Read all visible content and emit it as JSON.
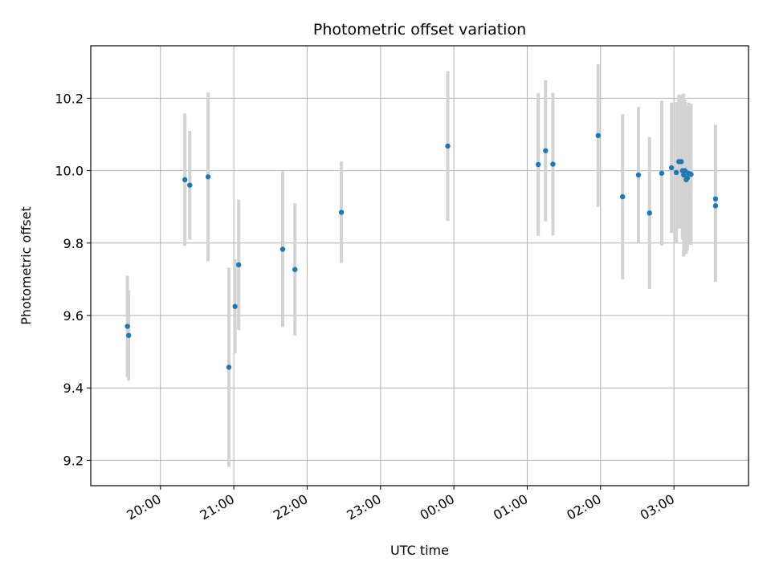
{
  "chart_data": {
    "type": "scatter",
    "title": "Photometric offset variation",
    "xlabel": "UTC time",
    "ylabel": "Photometric offset",
    "x_tick_labels": [
      "20:00",
      "21:00",
      "22:00",
      "23:00",
      "00:00",
      "01:00",
      "02:00",
      "03:00"
    ],
    "y_tick_labels": [
      "9.2",
      "9.4",
      "9.6",
      "9.8",
      "10.0",
      "10.2"
    ],
    "y_ticks": [
      9.2,
      9.4,
      9.6,
      9.8,
      10.0,
      10.2
    ],
    "xlim": [
      "19:03",
      "04:01"
    ],
    "ylim": [
      9.13,
      10.345
    ],
    "grid": true,
    "marker_color": "#1f77b4",
    "errorbar_color": "#d3d3d3",
    "series": [
      {
        "points": [
          {
            "time": "19:33",
            "y": 9.57,
            "yerr": 0.14
          },
          {
            "time": "19:34",
            "y": 9.545,
            "yerr": 0.125
          },
          {
            "time": "20:20",
            "y": 9.975,
            "yerr": 0.183
          },
          {
            "time": "20:24",
            "y": 9.96,
            "yerr": 0.15
          },
          {
            "time": "20:39",
            "y": 9.983,
            "yerr": 0.233
          },
          {
            "time": "20:56",
            "y": 9.457,
            "yerr": 0.275
          },
          {
            "time": "21:01",
            "y": 9.625,
            "yerr": 0.13
          },
          {
            "time": "21:04",
            "y": 9.74,
            "yerr": 0.18
          },
          {
            "time": "21:40",
            "y": 9.783,
            "yerr": 0.215
          },
          {
            "time": "21:50",
            "y": 9.727,
            "yerr": 0.183
          },
          {
            "time": "22:28",
            "y": 9.885,
            "yerr": 0.14
          },
          {
            "time": "23:55",
            "y": 10.068,
            "yerr": 0.207
          },
          {
            "time": "01:09",
            "y": 10.017,
            "yerr": 0.197
          },
          {
            "time": "01:15",
            "y": 10.055,
            "yerr": 0.195
          },
          {
            "time": "01:21",
            "y": 10.018,
            "yerr": 0.197
          },
          {
            "time": "01:58",
            "y": 10.097,
            "yerr": 0.197
          },
          {
            "time": "02:18",
            "y": 9.928,
            "yerr": 0.228
          },
          {
            "time": "02:31",
            "y": 9.988,
            "yerr": 0.188
          },
          {
            "time": "02:40",
            "y": 9.883,
            "yerr": 0.21
          },
          {
            "time": "02:50",
            "y": 9.993,
            "yerr": 0.2
          },
          {
            "time": "02:58",
            "y": 10.008,
            "yerr": 0.18
          },
          {
            "time": "03:02",
            "y": 9.995,
            "yerr": 0.195
          },
          {
            "time": "03:04",
            "y": 10.025,
            "yerr": 0.185
          },
          {
            "time": "03:06",
            "y": 10.025,
            "yerr": 0.185
          },
          {
            "time": "03:07",
            "y": 10.0,
            "yerr": 0.19
          },
          {
            "time": "03:08",
            "y": 9.988,
            "yerr": 0.225
          },
          {
            "time": "03:09",
            "y": 10.0,
            "yerr": 0.195
          },
          {
            "time": "03:10",
            "y": 9.975,
            "yerr": 0.205
          },
          {
            "time": "03:11",
            "y": 9.98,
            "yerr": 0.2
          },
          {
            "time": "03:12",
            "y": 9.993,
            "yerr": 0.195
          },
          {
            "time": "03:14",
            "y": 9.99,
            "yerr": 0.195
          },
          {
            "time": "03:34",
            "y": 9.922,
            "yerr": 0.205
          },
          {
            "time": "03:34",
            "y": 9.903,
            "yerr": 0.21
          }
        ]
      }
    ]
  }
}
